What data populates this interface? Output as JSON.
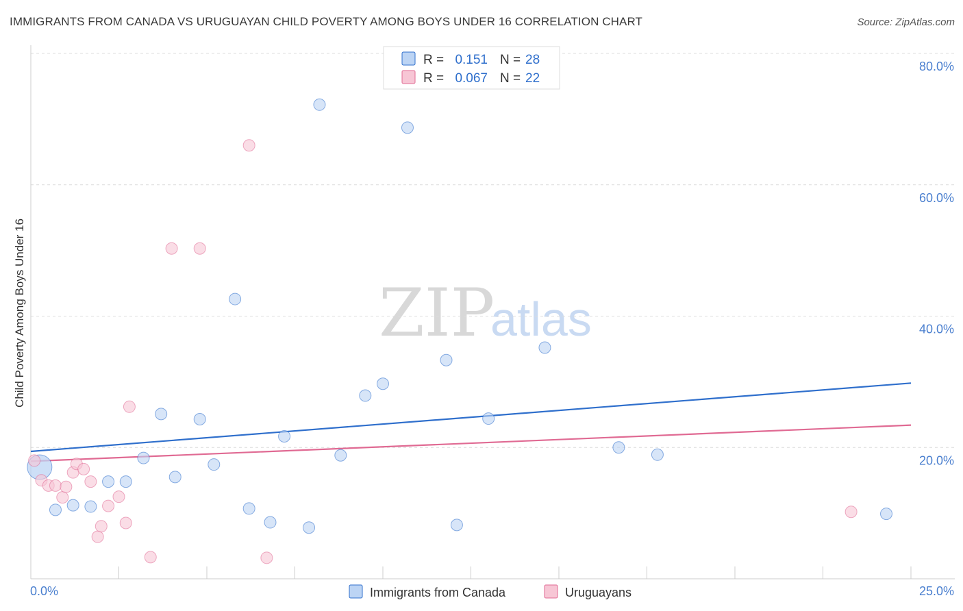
{
  "title": "IMMIGRANTS FROM CANADA VS URUGUAYAN CHILD POVERTY AMONG BOYS UNDER 16 CORRELATION CHART",
  "source": "Source: ZipAtlas.com",
  "watermark": {
    "zip": "ZIP",
    "atlas": "atlas"
  },
  "colors": {
    "blue": "#2f6fcc",
    "blue_fill": "#bcd4f4",
    "pink": "#e06a93",
    "pink_fill": "#f7c6d5",
    "tick_label": "#4a7fcf"
  },
  "legend": {
    "rows": [
      {
        "r_label": "R =",
        "r_value": "0.151",
        "n_label": "N =",
        "n_value": "28"
      },
      {
        "r_label": "R =",
        "r_value": "0.067",
        "n_label": "N =",
        "n_value": "22"
      }
    ]
  },
  "bottom_legend": [
    "Immigrants from Canada",
    "Uruguayans"
  ],
  "chart_data": {
    "type": "scatter",
    "title": "IMMIGRANTS FROM CANADA VS URUGUAYAN CHILD POVERTY AMONG BOYS UNDER 16 CORRELATION CHART",
    "xlabel": "",
    "ylabel": "Child Poverty Among Boys Under 16",
    "xlim": [
      0,
      25
    ],
    "ylim": [
      0,
      80
    ],
    "x_tick_labels": [
      "0.0%",
      "25.0%"
    ],
    "y_ticks": [
      20,
      40,
      60,
      80
    ],
    "y_tick_labels": [
      "20.0%",
      "40.0%",
      "60.0%",
      "80.0%"
    ],
    "grid": true,
    "legend_position": "top-center",
    "series": [
      {
        "name": "Immigrants from Canada",
        "color": "#2f6fcc",
        "fill": "#bcd4f4",
        "r": 0.151,
        "n": 28,
        "trend": [
          [
            0,
            19.4
          ],
          [
            25,
            29.8
          ]
        ],
        "points": [
          [
            0.25,
            17.0
          ],
          [
            0.7,
            10.5
          ],
          [
            1.2,
            11.2
          ],
          [
            1.7,
            11.0
          ],
          [
            2.2,
            14.8
          ],
          [
            2.7,
            14.8
          ],
          [
            3.2,
            18.4
          ],
          [
            3.7,
            25.1
          ],
          [
            4.1,
            15.5
          ],
          [
            4.8,
            24.3
          ],
          [
            5.2,
            17.4
          ],
          [
            5.8,
            42.6
          ],
          [
            6.2,
            10.7
          ],
          [
            6.8,
            8.6
          ],
          [
            7.2,
            21.7
          ],
          [
            7.9,
            7.8
          ],
          [
            8.2,
            72.2
          ],
          [
            8.8,
            18.8
          ],
          [
            9.5,
            27.9
          ],
          [
            10.0,
            29.7
          ],
          [
            10.7,
            68.7
          ],
          [
            11.8,
            33.3
          ],
          [
            12.1,
            8.2
          ],
          [
            13.0,
            24.4
          ],
          [
            14.6,
            35.2
          ],
          [
            16.7,
            20.0
          ],
          [
            17.8,
            18.9
          ],
          [
            24.3,
            9.9
          ]
        ]
      },
      {
        "name": "Uruguayans",
        "color": "#e06a93",
        "fill": "#f7c6d5",
        "r": 0.067,
        "n": 22,
        "trend": [
          [
            0,
            17.9
          ],
          [
            25,
            23.4
          ]
        ],
        "points": [
          [
            0.1,
            18.0
          ],
          [
            0.3,
            15.0
          ],
          [
            0.5,
            14.2
          ],
          [
            0.7,
            14.2
          ],
          [
            0.9,
            12.4
          ],
          [
            1.0,
            14.0
          ],
          [
            1.2,
            16.2
          ],
          [
            1.3,
            17.5
          ],
          [
            1.5,
            16.7
          ],
          [
            1.7,
            14.8
          ],
          [
            1.9,
            6.4
          ],
          [
            2.0,
            8.0
          ],
          [
            2.2,
            11.1
          ],
          [
            2.5,
            12.5
          ],
          [
            2.7,
            8.5
          ],
          [
            2.8,
            26.2
          ],
          [
            3.4,
            3.3
          ],
          [
            4.0,
            50.3
          ],
          [
            4.8,
            50.3
          ],
          [
            6.2,
            66.0
          ],
          [
            6.7,
            3.2
          ],
          [
            23.3,
            10.2
          ]
        ]
      }
    ]
  }
}
